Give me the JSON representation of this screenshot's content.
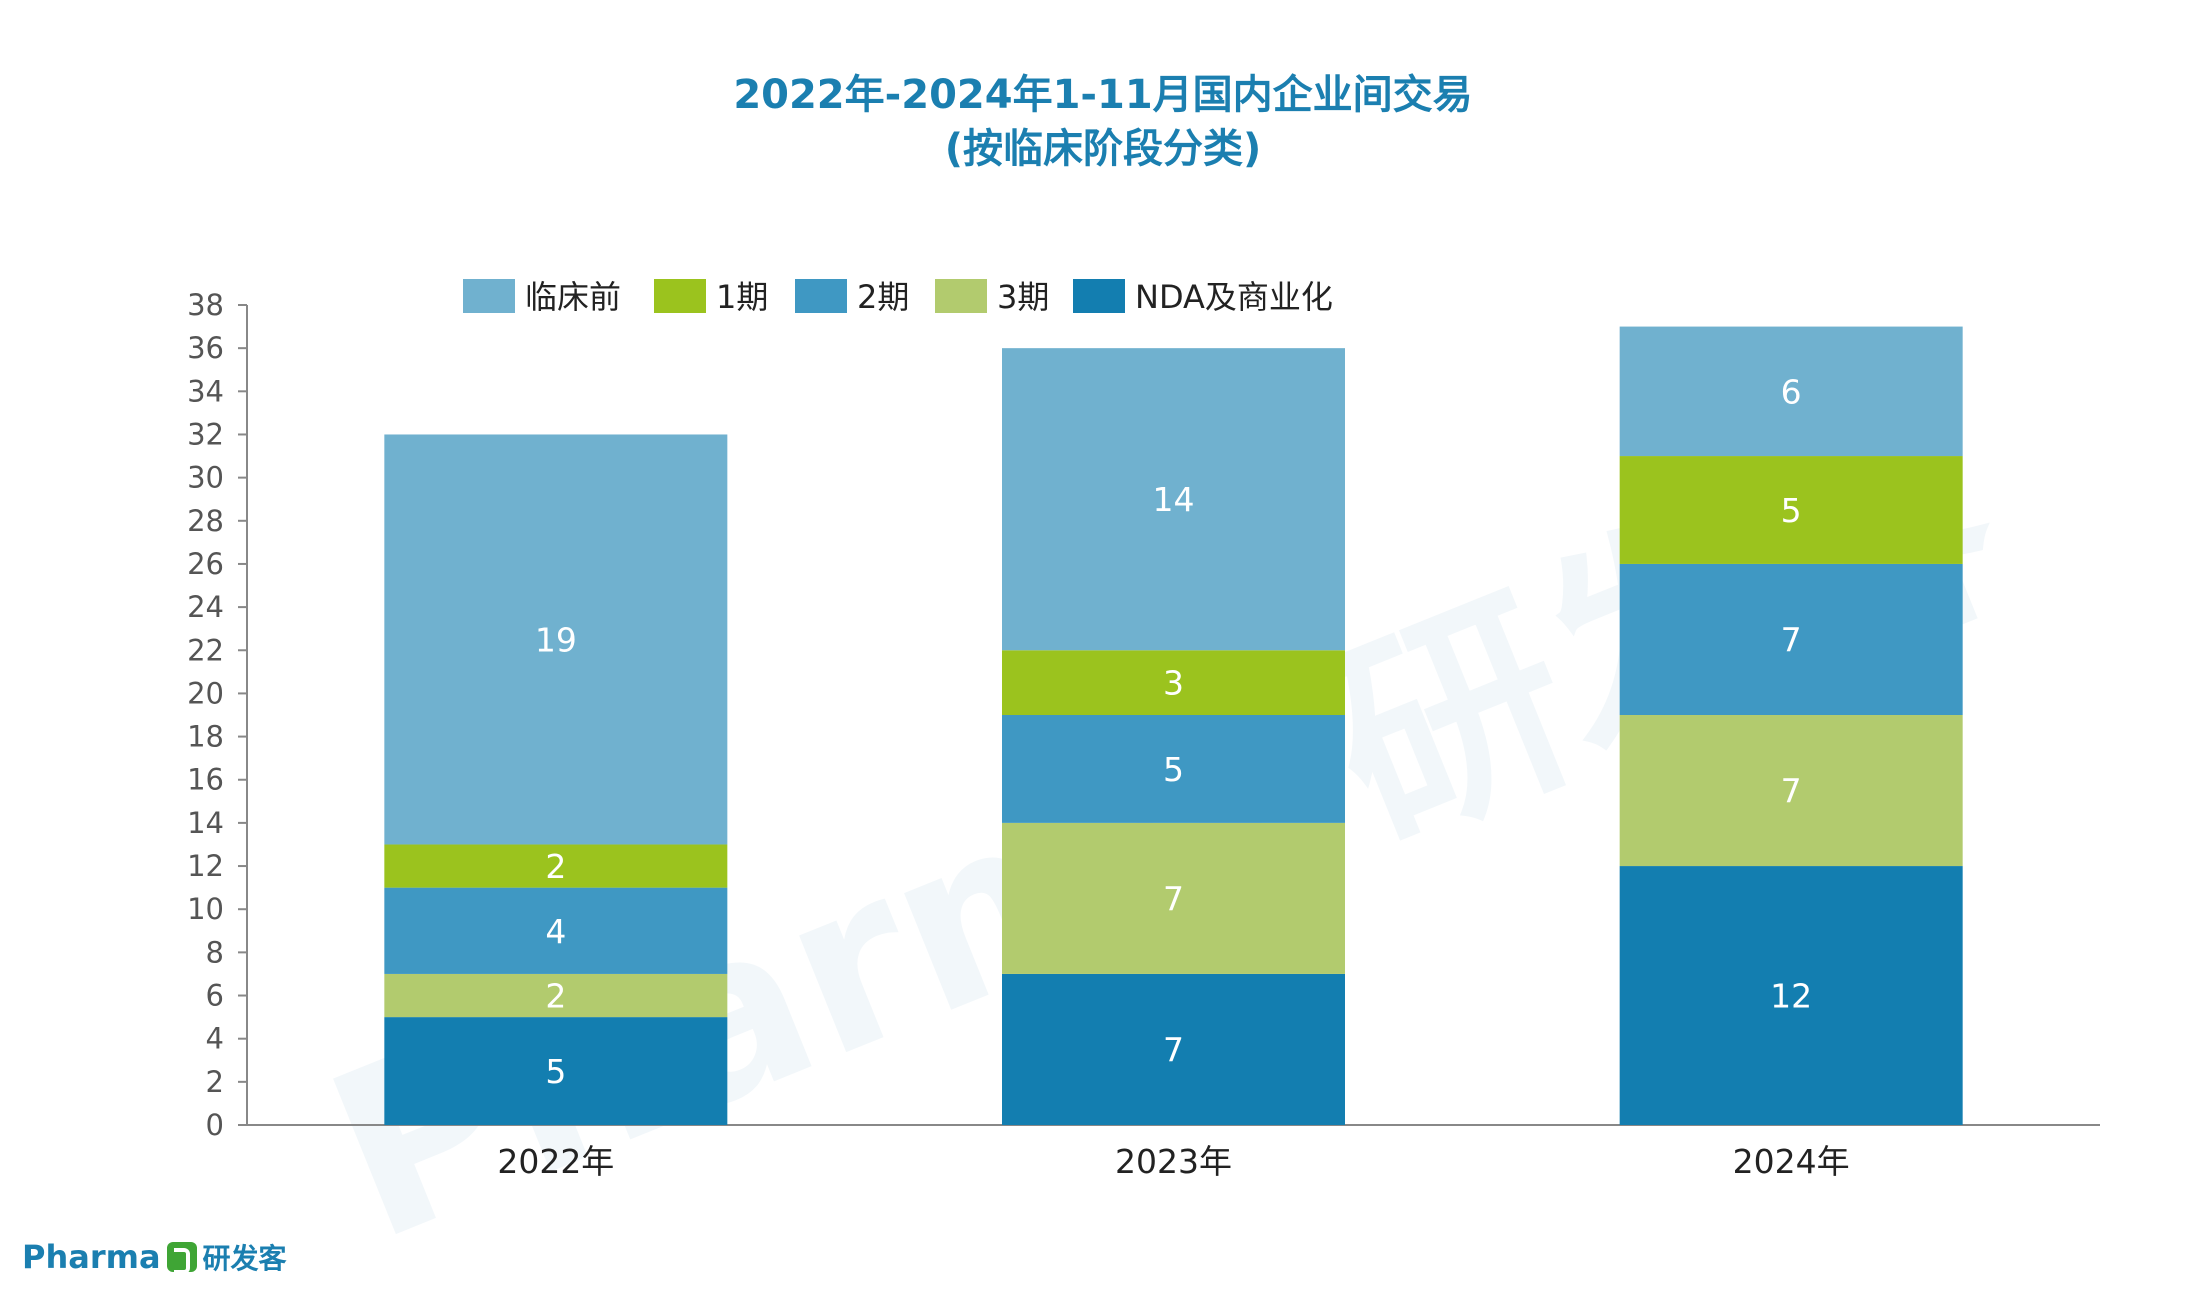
{
  "title_line1": "2022年-2024年1-11月国内企业间交易",
  "title_line2": "(按临床阶段分类)",
  "watermark": {
    "text": "Pharma",
    "cn": "研发客"
  },
  "footer": {
    "brand": "Pharma",
    "brand_cn": "研发客"
  },
  "chart_data": {
    "type": "bar",
    "stacked": true,
    "categories": [
      "2022年",
      "2023年",
      "2024年"
    ],
    "series": [
      {
        "name": "NDA及商业化",
        "color": "#137eb0",
        "values": [
          5,
          7,
          12
        ]
      },
      {
        "name": "3期",
        "color": "#b2cb6e",
        "values": [
          2,
          7,
          7
        ]
      },
      {
        "name": "2期",
        "color": "#3f98c3",
        "values": [
          4,
          5,
          7
        ]
      },
      {
        "name": "1期",
        "color": "#9bc31e",
        "values": [
          2,
          3,
          5
        ]
      },
      {
        "name": "临床前",
        "color": "#70b1cf",
        "values": [
          19,
          14,
          6
        ]
      }
    ],
    "legend_order": [
      "临床前",
      "1期",
      "2期",
      "3期",
      "NDA及商业化"
    ],
    "ylim": [
      0,
      38
    ],
    "yticks": [
      "0",
      "2",
      "4",
      "6",
      "8",
      "10",
      "12",
      "14",
      "16",
      "18",
      "20",
      "22",
      "24",
      "26",
      "28",
      "30",
      "32",
      "34",
      "36",
      "38"
    ],
    "legend_position": "top",
    "grid": false,
    "data_labels": true
  }
}
